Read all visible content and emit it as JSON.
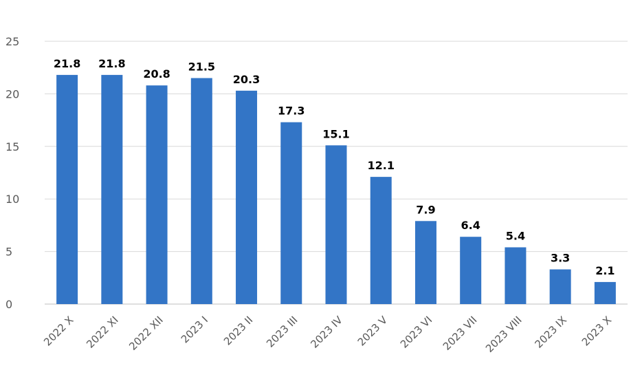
{
  "chart_data": {
    "type": "bar",
    "title": "",
    "xlabel": "",
    "ylabel": "",
    "ylim": [
      0,
      25
    ],
    "yticks": [
      0,
      5,
      10,
      15,
      20,
      25
    ],
    "grid": true,
    "legend": "none",
    "bar_color": "#3375C6",
    "categories": [
      "2022 X",
      "2022 XI",
      "2022 XII",
      "2023 I",
      "2023 II",
      "2023 III",
      "2023 IV",
      "2023 V",
      "2023 VI",
      "2023 VII",
      "2023 VIII",
      "2023 IX",
      "2023 X"
    ],
    "values": [
      21.8,
      21.8,
      20.8,
      21.5,
      20.3,
      17.3,
      15.1,
      12.1,
      7.9,
      6.4,
      5.4,
      3.3,
      2.1
    ],
    "data_labels": [
      "21.8",
      "21.8",
      "20.8",
      "21.5",
      "20.3",
      "17.3",
      "15.1",
      "12.1",
      "7.9",
      "6.4",
      "5.4",
      "3.3",
      "2.1"
    ]
  }
}
